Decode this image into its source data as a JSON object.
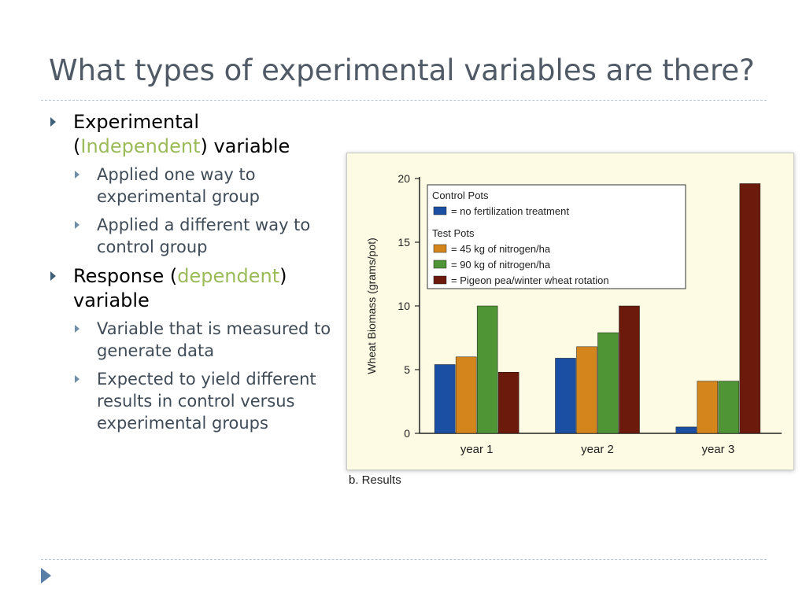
{
  "slide": {
    "title": "What types of experimental variables are there?",
    "bullets": [
      {
        "pre": "Experimental (",
        "highlight": "Independent",
        "post": ") variable",
        "subs": [
          "Applied one way to experimental group",
          "Applied a different way to control group"
        ]
      },
      {
        "pre": "Response (",
        "highlight": "dependent",
        "post": ") variable",
        "subs": [
          "Variable that is measured to generate data",
          "Expected to yield different results in control versus experimental groups"
        ]
      }
    ],
    "highlight_color": "#9bbb59",
    "caption": "b. Results"
  },
  "chart_data": {
    "type": "bar",
    "categories": [
      "year 1",
      "year 2",
      "year 3"
    ],
    "ylabel": "Wheat Biomass (grams/pot)",
    "xlabel": "",
    "ylim": [
      0,
      20
    ],
    "yticks": [
      0,
      5,
      10,
      15,
      20
    ],
    "grid": false,
    "legend_position": "top-left",
    "legend_groups": [
      {
        "heading": "Control Pots",
        "series_indices": [
          0
        ]
      },
      {
        "heading": "Test Pots",
        "series_indices": [
          1,
          2,
          3
        ]
      }
    ],
    "series": [
      {
        "name": "= no fertilization treatment",
        "color": "#1b4fa3",
        "values": [
          5.4,
          5.9,
          0.5
        ]
      },
      {
        "name": "= 45 kg of nitrogen/ha",
        "color": "#d4861c",
        "values": [
          6.0,
          6.8,
          4.1
        ]
      },
      {
        "name": "= 90 kg of nitrogen/ha",
        "color": "#4f9435",
        "values": [
          10.0,
          7.9,
          4.1
        ]
      },
      {
        "name": "= Pigeon pea/winter wheat rotation",
        "color": "#6b1a0c",
        "values": [
          4.8,
          10.0,
          19.6
        ]
      }
    ]
  }
}
